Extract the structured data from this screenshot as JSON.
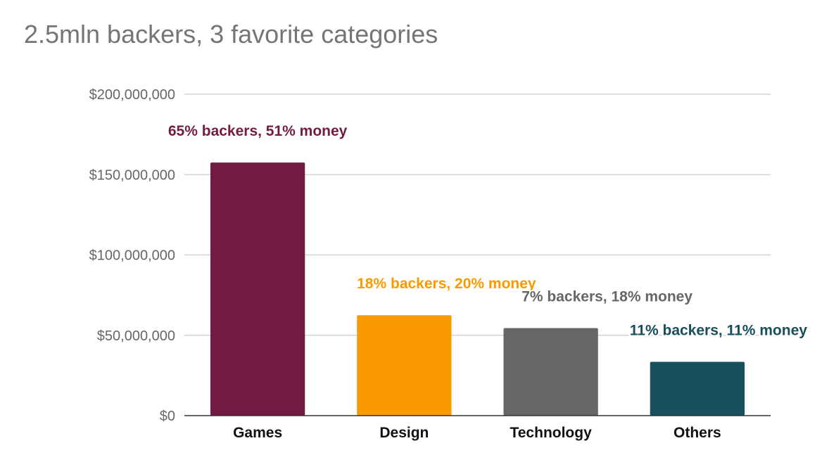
{
  "chart_data": {
    "type": "bar",
    "title": "2.5mln backers, 3 favorite categories",
    "categories": [
      "Games",
      "Design",
      "Technology",
      "Others"
    ],
    "values": [
      157500000,
      62500000,
      54500000,
      33500000
    ],
    "colors": [
      "#731c43",
      "#fb9a00",
      "#666666",
      "#174f5c"
    ],
    "data_labels": [
      "65% backers, 51% money",
      "18% backers, 20% money",
      "7% backers, 18% money",
      "11% backers, 11% money"
    ],
    "ylim": [
      0,
      200000000
    ],
    "yticks": [
      0,
      50000000,
      100000000,
      150000000,
      200000000
    ],
    "ytick_labels": [
      "$0",
      "$50,000,000",
      "$100,000,000",
      "$150,000,000",
      "$200,000,000"
    ],
    "xlabel": "",
    "ylabel": "",
    "grid": true,
    "legend": "none"
  }
}
